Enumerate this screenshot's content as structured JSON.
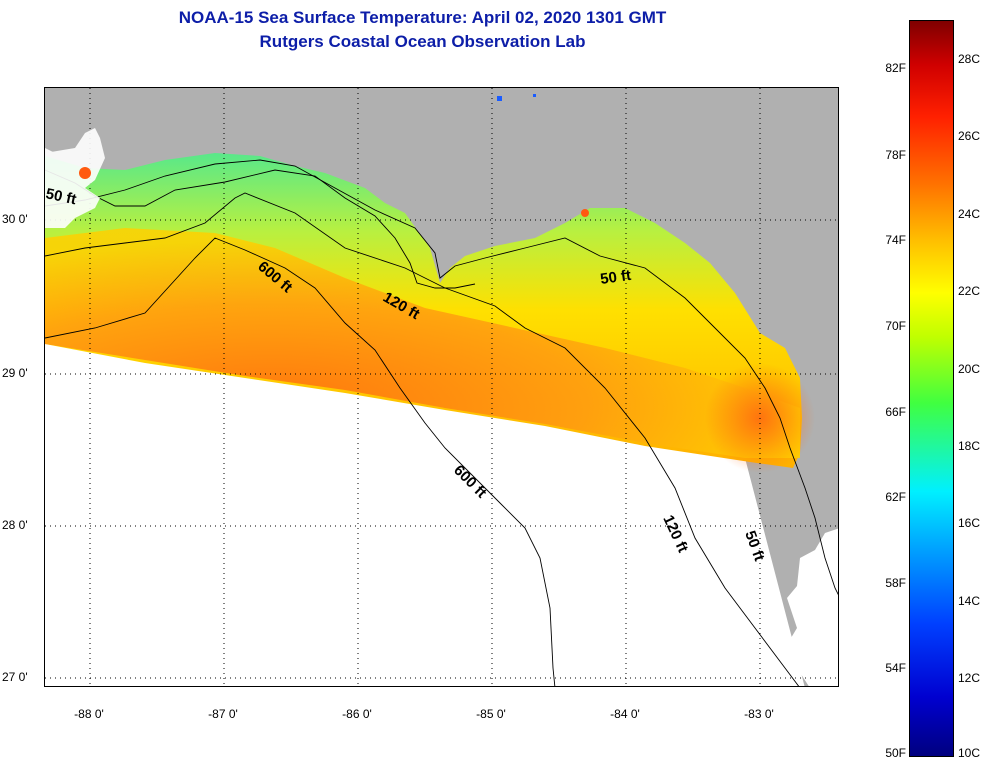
{
  "title": {
    "line1": "NOAA-15 Sea Surface Temperature:  April 02, 2020 1301 GMT",
    "line2": "Rutgers Coastal Ocean Observation Lab"
  },
  "map": {
    "lat_labels": [
      "30 0'",
      "29 0'",
      "28 0'",
      "27 0'"
    ],
    "lon_labels": [
      "-88 0'",
      "-87 0'",
      "-86 0'",
      "-85 0'",
      "-84 0'",
      "-83 0'"
    ],
    "contour_labels": {
      "c50_west": "50 ft",
      "c50_east": "50 ft",
      "c50_south": "50 ft",
      "c600_north": "600 ft",
      "c600_south": "600 ft",
      "c120_north": "120 ft",
      "c120_south": "120 ft"
    },
    "colors": {
      "land": "#b0b0b0",
      "no_data": "#ffffff",
      "warm": "#ff7a10",
      "mid": "#ffd800",
      "cool": "#58e88a"
    }
  },
  "colorbar": {
    "fahrenheit_labels": [
      "82F",
      "78F",
      "74F",
      "70F",
      "66F",
      "62F",
      "58F",
      "54F",
      "50F"
    ],
    "celsius_labels": [
      "28C",
      "26C",
      "24C",
      "22C",
      "20C",
      "18C",
      "16C",
      "14C",
      "12C",
      "10C"
    ],
    "range_celsius": [
      10,
      29.5
    ],
    "range_fahrenheit": [
      50,
      85.1
    ]
  }
}
